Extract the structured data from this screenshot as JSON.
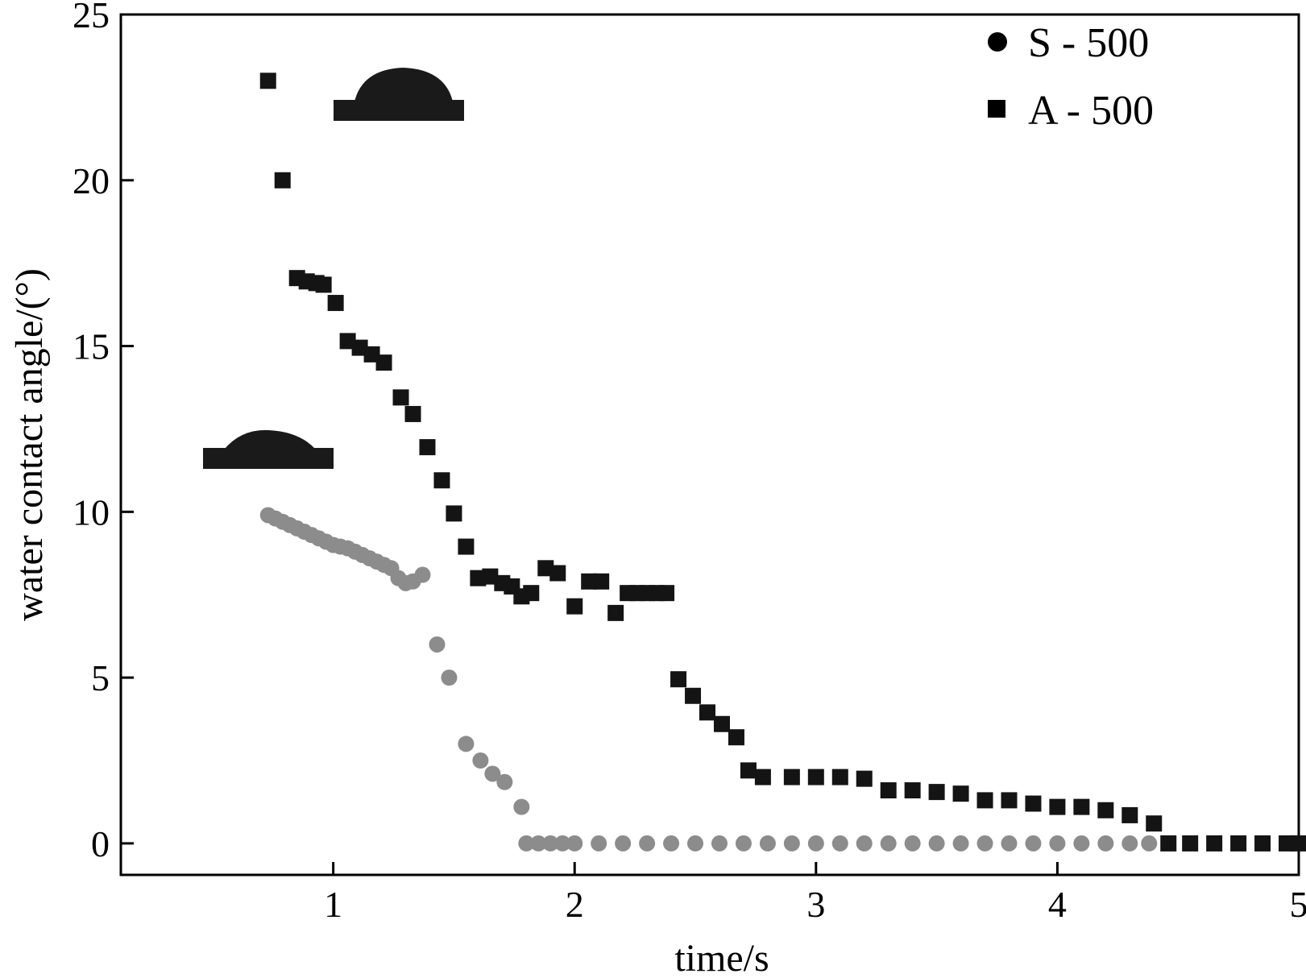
{
  "chart_data": {
    "type": "scatter",
    "title": "",
    "xlabel": "time/s",
    "ylabel": "water contact angle/(°)",
    "xlim": [
      0.12,
      5
    ],
    "ylim": [
      -0.95,
      25
    ],
    "x_ticks": [
      "1",
      "2",
      "3",
      "4",
      "5"
    ],
    "y_ticks": [
      "0",
      "5",
      "10",
      "15",
      "20",
      "25"
    ],
    "grid": false,
    "legend_position": "top-right",
    "series": [
      {
        "name": "S - 500",
        "marker": "circle",
        "color": "#8c8c8c",
        "points": [
          [
            0.73,
            9.9
          ],
          [
            0.76,
            9.8
          ],
          [
            0.79,
            9.7
          ],
          [
            0.82,
            9.6
          ],
          [
            0.85,
            9.5
          ],
          [
            0.88,
            9.4
          ],
          [
            0.91,
            9.3
          ],
          [
            0.94,
            9.2
          ],
          [
            0.97,
            9.1
          ],
          [
            1.0,
            9.0
          ],
          [
            1.03,
            8.95
          ],
          [
            1.06,
            8.9
          ],
          [
            1.09,
            8.8
          ],
          [
            1.12,
            8.7
          ],
          [
            1.15,
            8.6
          ],
          [
            1.18,
            8.5
          ],
          [
            1.21,
            8.4
          ],
          [
            1.24,
            8.3
          ],
          [
            1.27,
            8.0
          ],
          [
            1.3,
            7.85
          ],
          [
            1.33,
            7.9
          ],
          [
            1.37,
            8.1
          ],
          [
            1.43,
            6.0
          ],
          [
            1.48,
            5.0
          ],
          [
            1.55,
            3.0
          ],
          [
            1.61,
            2.5
          ],
          [
            1.66,
            2.1
          ],
          [
            1.71,
            1.85
          ],
          [
            1.78,
            1.1
          ],
          [
            1.8,
            0.0
          ],
          [
            1.85,
            0.0
          ],
          [
            1.9,
            0.0
          ],
          [
            1.95,
            0.0
          ],
          [
            2.0,
            0.0
          ],
          [
            2.1,
            0.0
          ],
          [
            2.2,
            0.0
          ],
          [
            2.3,
            0.0
          ],
          [
            2.4,
            0.0
          ],
          [
            2.5,
            0.0
          ],
          [
            2.6,
            0.0
          ],
          [
            2.7,
            0.0
          ],
          [
            2.8,
            0.0
          ],
          [
            2.9,
            0.0
          ],
          [
            3.0,
            0.0
          ],
          [
            3.1,
            0.0
          ],
          [
            3.2,
            0.0
          ],
          [
            3.3,
            0.0
          ],
          [
            3.4,
            0.0
          ],
          [
            3.5,
            0.0
          ],
          [
            3.6,
            0.0
          ],
          [
            3.7,
            0.0
          ],
          [
            3.8,
            0.0
          ],
          [
            3.9,
            0.0
          ],
          [
            4.0,
            0.0
          ],
          [
            4.1,
            0.0
          ],
          [
            4.2,
            0.0
          ],
          [
            4.3,
            0.0
          ],
          [
            4.38,
            0.0
          ]
        ]
      },
      {
        "name": "A - 500",
        "marker": "square",
        "color": "#141414",
        "points": [
          [
            0.73,
            23.0
          ],
          [
            0.79,
            20.0
          ],
          [
            0.85,
            17.05
          ],
          [
            0.89,
            16.95
          ],
          [
            0.93,
            16.9
          ],
          [
            0.96,
            16.85
          ],
          [
            1.01,
            16.3
          ],
          [
            1.06,
            15.15
          ],
          [
            1.11,
            14.95
          ],
          [
            1.16,
            14.75
          ],
          [
            1.21,
            14.5
          ],
          [
            1.28,
            13.45
          ],
          [
            1.33,
            12.95
          ],
          [
            1.39,
            11.95
          ],
          [
            1.45,
            10.95
          ],
          [
            1.5,
            9.95
          ],
          [
            1.55,
            8.95
          ],
          [
            1.6,
            8.0
          ],
          [
            1.65,
            8.05
          ],
          [
            1.7,
            7.85
          ],
          [
            1.74,
            7.75
          ],
          [
            1.78,
            7.45
          ],
          [
            1.82,
            7.55
          ],
          [
            1.88,
            8.3
          ],
          [
            1.93,
            8.15
          ],
          [
            2.0,
            7.15
          ],
          [
            2.06,
            7.9
          ],
          [
            2.11,
            7.9
          ],
          [
            2.17,
            6.95
          ],
          [
            2.22,
            7.55
          ],
          [
            2.26,
            7.55
          ],
          [
            2.3,
            7.55
          ],
          [
            2.34,
            7.55
          ],
          [
            2.38,
            7.55
          ],
          [
            2.43,
            4.95
          ],
          [
            2.49,
            4.45
          ],
          [
            2.55,
            3.95
          ],
          [
            2.61,
            3.6
          ],
          [
            2.67,
            3.2
          ],
          [
            2.72,
            2.2
          ],
          [
            2.78,
            2.0
          ],
          [
            2.9,
            2.0
          ],
          [
            3.0,
            2.0
          ],
          [
            3.1,
            2.0
          ],
          [
            3.2,
            1.95
          ],
          [
            3.3,
            1.6
          ],
          [
            3.4,
            1.6
          ],
          [
            3.5,
            1.55
          ],
          [
            3.6,
            1.5
          ],
          [
            3.7,
            1.3
          ],
          [
            3.8,
            1.3
          ],
          [
            3.9,
            1.2
          ],
          [
            4.0,
            1.1
          ],
          [
            4.1,
            1.1
          ],
          [
            4.2,
            1.0
          ],
          [
            4.3,
            0.85
          ],
          [
            4.4,
            0.6
          ],
          [
            4.46,
            0.0
          ],
          [
            4.55,
            0.0
          ],
          [
            4.65,
            0.0
          ],
          [
            4.75,
            0.0
          ],
          [
            4.85,
            0.0
          ],
          [
            4.95,
            0.0
          ],
          [
            5.0,
            0.0
          ]
        ]
      }
    ]
  }
}
